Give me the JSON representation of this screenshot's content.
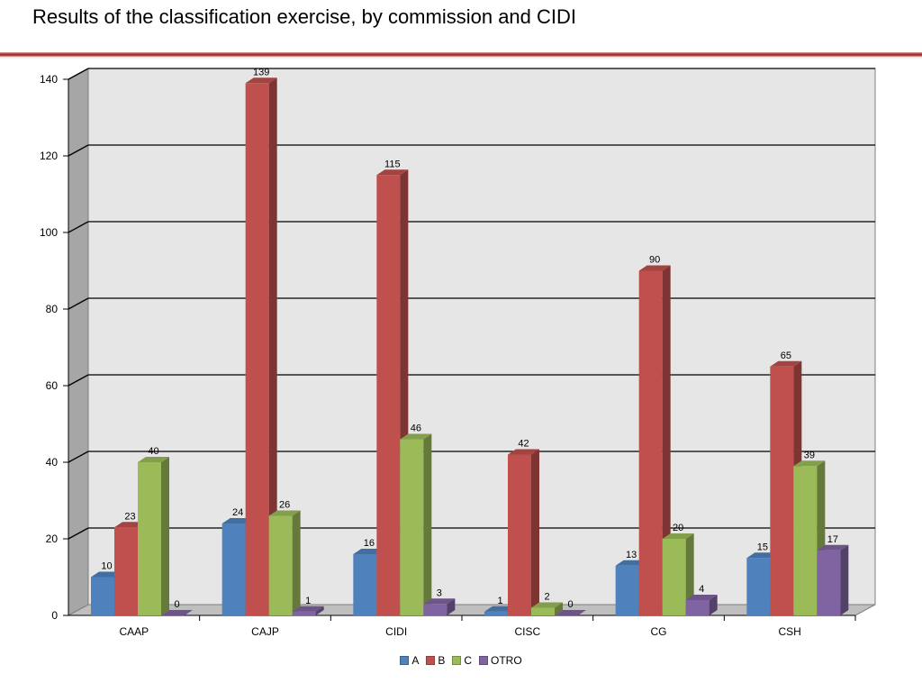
{
  "slide": {
    "title": "Results of the classification exercise, by commission and CIDI"
  },
  "chart_data": {
    "type": "bar",
    "style": "3d-clustered-column",
    "categories": [
      "CAAP",
      "CAJP",
      "CIDI",
      "CISC",
      "CG",
      "CSH"
    ],
    "series": [
      {
        "name": "A",
        "color": "#4f81bd",
        "values": [
          10,
          24,
          16,
          1,
          13,
          15
        ]
      },
      {
        "name": "B",
        "color": "#c0504d",
        "values": [
          23,
          139,
          115,
          42,
          90,
          65
        ]
      },
      {
        "name": "C",
        "color": "#9bbb59",
        "values": [
          40,
          26,
          46,
          2,
          20,
          39
        ]
      },
      {
        "name": "OTRO",
        "color": "#8064a2",
        "values": [
          0,
          1,
          3,
          0,
          4,
          17
        ]
      }
    ],
    "y_ticks": [
      0,
      20,
      40,
      60,
      80,
      100,
      120,
      140
    ],
    "ylim": [
      0,
      140
    ],
    "title": "",
    "xlabel": "",
    "ylabel": "",
    "grid": true,
    "data_labels": true,
    "legend_position": "bottom"
  }
}
